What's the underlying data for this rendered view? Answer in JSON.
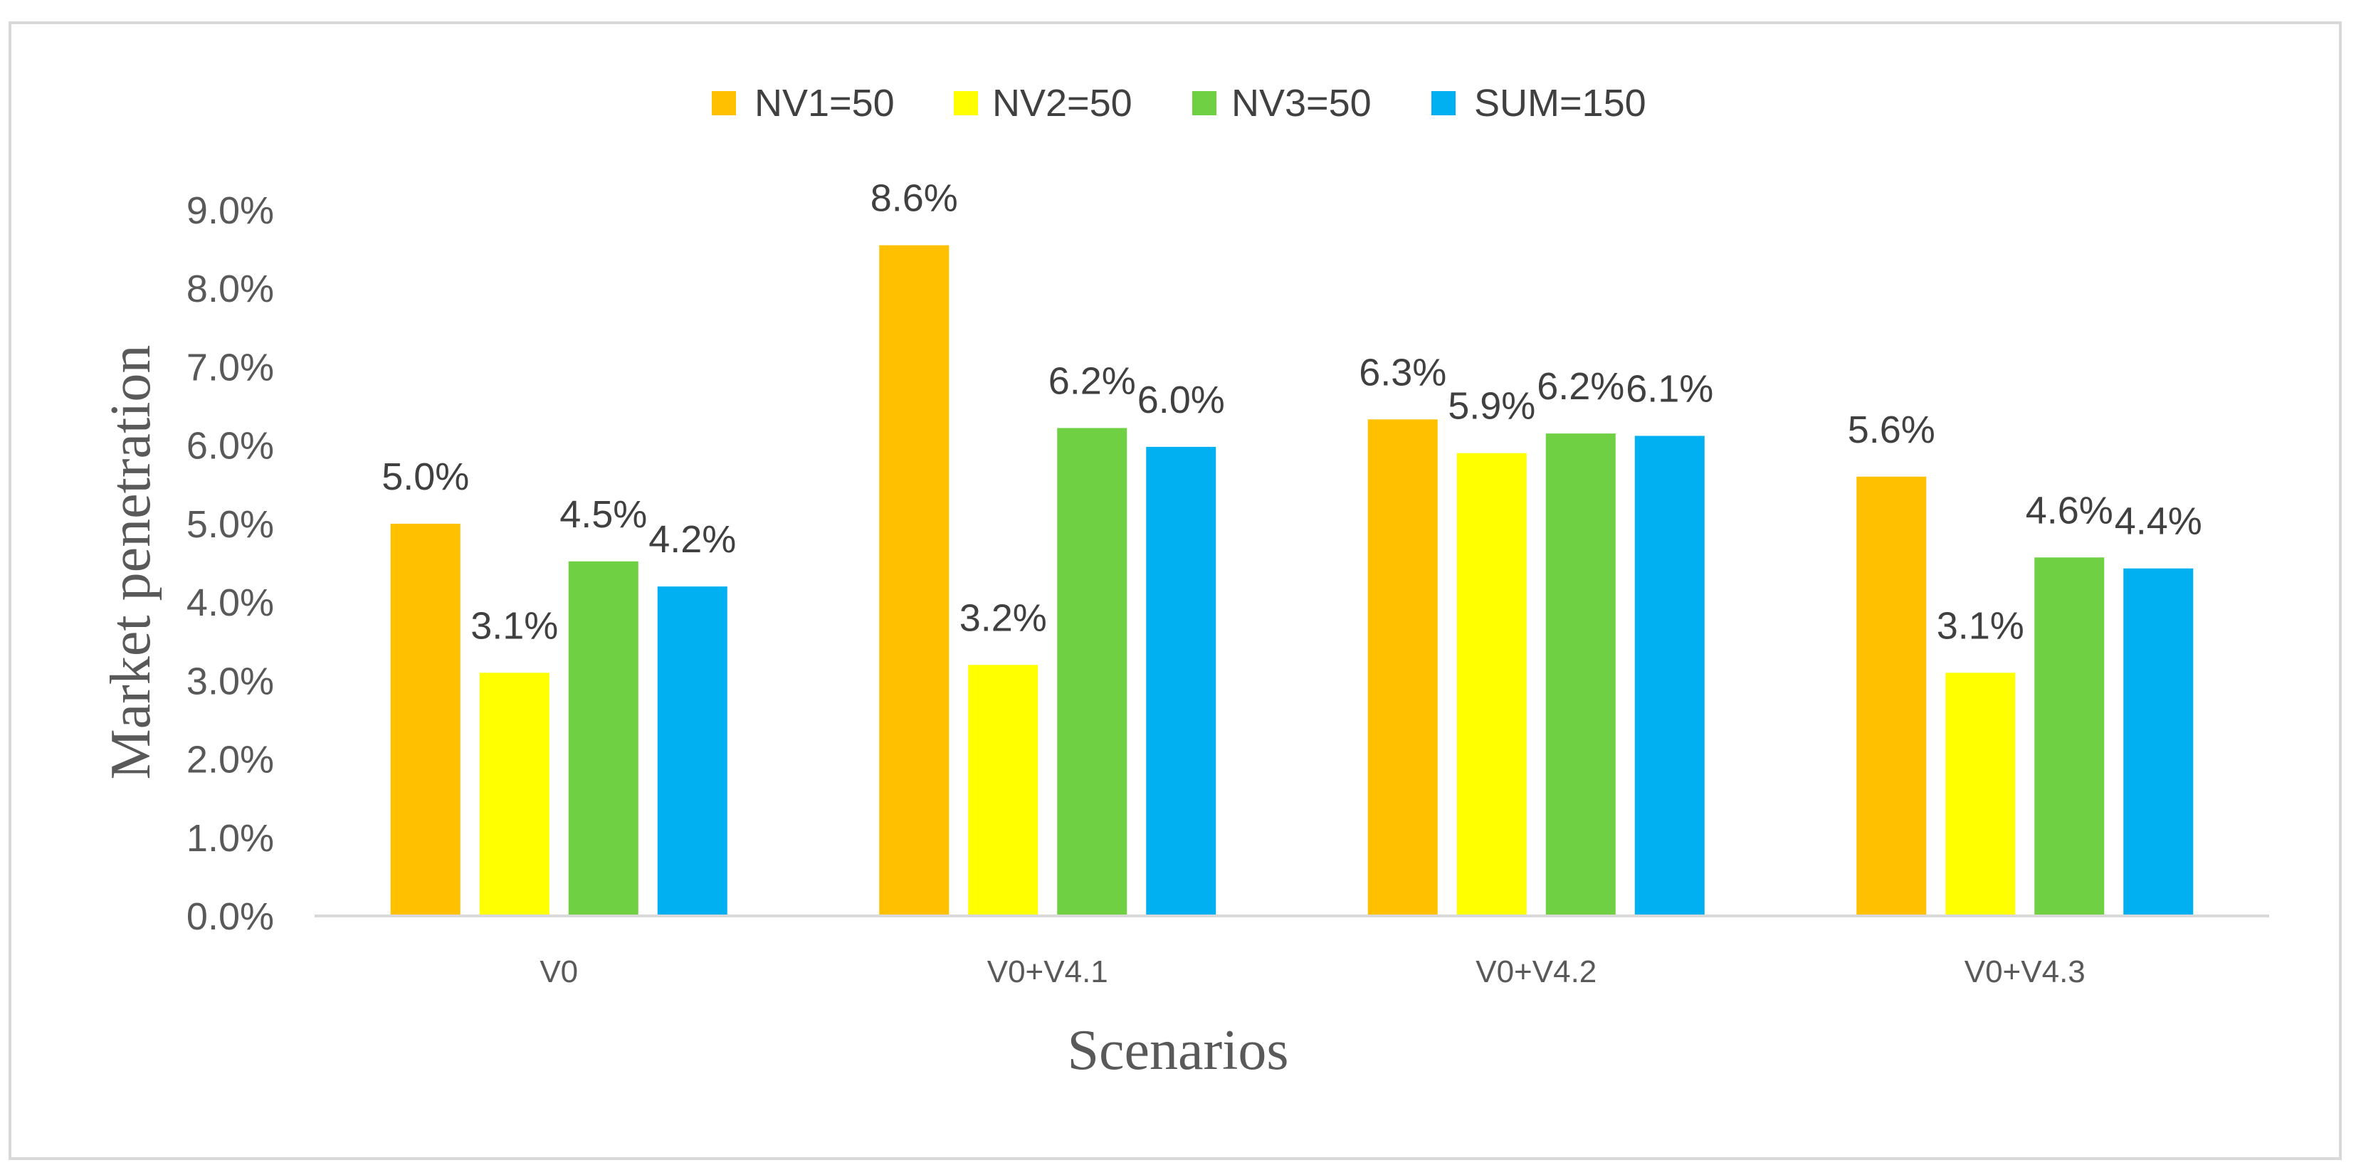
{
  "chart_data": {
    "type": "bar",
    "title": "",
    "xlabel": "Scenarios",
    "ylabel": "Market penetration",
    "ylim": [
      0,
      9
    ],
    "ytick_step": 1,
    "ytick_labels": [
      "0.0%",
      "1.0%",
      "2.0%",
      "3.0%",
      "4.0%",
      "5.0%",
      "6.0%",
      "7.0%",
      "8.0%",
      "9.0%"
    ],
    "grid": false,
    "legend_position": "top-center",
    "categories": [
      "V0",
      "V0+V4.1",
      "V0+V4.2",
      "V0+V4.3"
    ],
    "series": [
      {
        "name": "NV1=50",
        "color": "#FFC000",
        "values": [
          5.0,
          8.55,
          6.33,
          5.6
        ],
        "labels": [
          "5.0%",
          "8.6%",
          "6.3%",
          "5.6%"
        ]
      },
      {
        "name": "NV2=50",
        "color": "#FFFF00",
        "values": [
          3.1,
          3.2,
          5.9,
          3.1
        ],
        "labels": [
          "3.1%",
          "3.2%",
          "5.9%",
          "3.1%"
        ]
      },
      {
        "name": "NV3=50",
        "color": "#70D044",
        "values": [
          4.52,
          6.22,
          6.15,
          4.57
        ],
        "labels": [
          "4.5%",
          "6.2%",
          "6.2%",
          "4.6%"
        ]
      },
      {
        "name": "SUM=150",
        "color": "#00B0F0",
        "values": [
          4.2,
          5.98,
          6.12,
          4.43
        ],
        "labels": [
          "4.2%",
          "6.0%",
          "6.1%",
          "4.4%"
        ]
      }
    ]
  }
}
